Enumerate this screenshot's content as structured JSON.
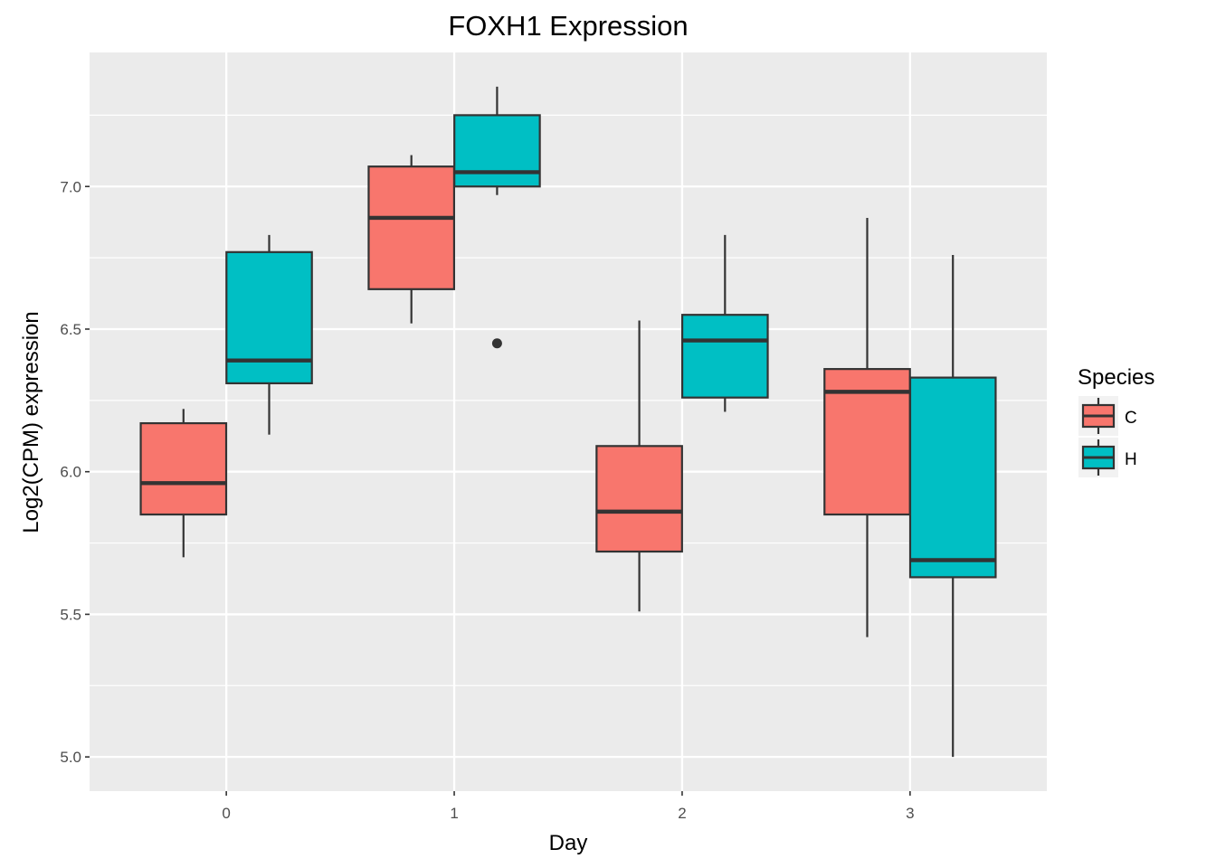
{
  "chart_data": {
    "type": "boxplot",
    "title": "FOXH1 Expression",
    "xlabel": "Day",
    "ylabel": "Log2(CPM) expression",
    "categories": [
      "0",
      "1",
      "2",
      "3"
    ],
    "ylim": [
      4.88,
      7.47
    ],
    "yticks": [
      "5.0",
      "5.5",
      "6.0",
      "6.5",
      "7.0"
    ],
    "grid": true,
    "legend": {
      "title": "Species",
      "position": "right"
    },
    "series": [
      {
        "name": "C",
        "color": "#F8766D",
        "boxes": [
          {
            "whisker_low": 5.7,
            "q1": 5.85,
            "median": 5.96,
            "q3": 6.17,
            "whisker_high": 6.22,
            "outliers": []
          },
          {
            "whisker_low": 6.52,
            "q1": 6.64,
            "median": 6.89,
            "q3": 7.07,
            "whisker_high": 7.11,
            "outliers": []
          },
          {
            "whisker_low": 5.51,
            "q1": 5.72,
            "median": 5.86,
            "q3": 6.09,
            "whisker_high": 6.53,
            "outliers": []
          },
          {
            "whisker_low": 5.42,
            "q1": 5.85,
            "median": 6.28,
            "q3": 6.36,
            "whisker_high": 6.89,
            "outliers": []
          }
        ]
      },
      {
        "name": "H",
        "color": "#00BFC4",
        "boxes": [
          {
            "whisker_low": 6.13,
            "q1": 6.31,
            "median": 6.39,
            "q3": 6.77,
            "whisker_high": 6.83,
            "outliers": []
          },
          {
            "whisker_low": 6.97,
            "q1": 7.0,
            "median": 7.05,
            "q3": 7.25,
            "whisker_high": 7.35,
            "outliers": [
              6.45
            ]
          },
          {
            "whisker_low": 6.21,
            "q1": 6.26,
            "median": 6.46,
            "q3": 6.55,
            "whisker_high": 6.83,
            "outliers": []
          },
          {
            "whisker_low": 5.0,
            "q1": 5.63,
            "median": 5.69,
            "q3": 6.33,
            "whisker_high": 6.76,
            "outliers": []
          }
        ]
      }
    ]
  }
}
